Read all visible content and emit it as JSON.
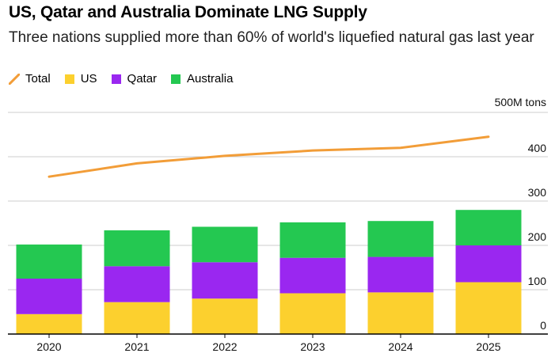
{
  "title": "US, Qatar and Australia Dominate LNG Supply",
  "subtitle": "Three nations supplied more than 60% of world's liquefied natural gas last year",
  "legend": [
    {
      "name": "Total",
      "kind": "line",
      "color": "#f29d38"
    },
    {
      "name": "US",
      "kind": "swatch",
      "color": "#fcd02e"
    },
    {
      "name": "Qatar",
      "kind": "swatch",
      "color": "#9a27f0"
    },
    {
      "name": "Australia",
      "kind": "swatch",
      "color": "#24c851"
    }
  ],
  "colors": {
    "total": "#f29d38",
    "us": "#fcd02e",
    "qatar": "#9a27f0",
    "australia": "#24c851",
    "grid": "#cccccc",
    "axis": "#000000"
  },
  "chart_data": {
    "type": "bar",
    "stacked": true,
    "categories": [
      "2020",
      "2021",
      "2022",
      "2023",
      "2024",
      "2025"
    ],
    "series": [
      {
        "name": "US",
        "values": [
          45,
          72,
          80,
          92,
          94,
          117
        ]
      },
      {
        "name": "Qatar",
        "values": [
          80,
          81,
          82,
          80,
          80,
          83
        ]
      },
      {
        "name": "Australia",
        "values": [
          77,
          81,
          80,
          80,
          81,
          80
        ]
      }
    ],
    "line_series": {
      "name": "Total",
      "values": [
        355,
        385,
        402,
        414,
        420,
        445
      ]
    },
    "ylim": [
      0,
      500
    ],
    "yticks": [
      0,
      100,
      200,
      300,
      400
    ],
    "ytick_labels": [
      "0",
      "100",
      "200",
      "300",
      "400"
    ],
    "unit_label": "500M tons",
    "grid": true,
    "legend_position": "top-left",
    "xlabel": "",
    "ylabel": ""
  }
}
